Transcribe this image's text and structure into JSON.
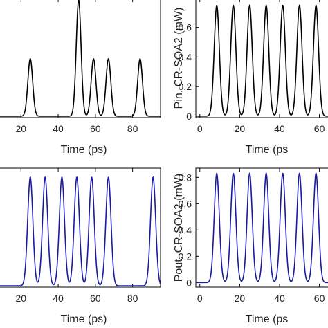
{
  "chart_data": [
    {
      "type": "line",
      "xlabel": "Time (ps)",
      "ylabel": "",
      "x_ticks": [
        20,
        40,
        60,
        80
      ],
      "y_ticks": [],
      "xlim": [
        8,
        95
      ],
      "ylim": [
        -0.01,
        0.84
      ],
      "color": "#000000",
      "pulse_width_ps": 1.3,
      "series": [
        {
          "name": "",
          "peaks_x": [
            25,
            51,
            59,
            67,
            84
          ],
          "peaks_y": [
            0.41,
            0.83,
            0.41,
            0.41,
            0.41
          ]
        }
      ]
    },
    {
      "type": "line",
      "xlabel": "Time (ps",
      "ylabel": "Pin, CR-SOA2 (mW)",
      "x_ticks": [
        0,
        20,
        40,
        60
      ],
      "y_ticks": [
        0.0,
        0.2,
        0.4,
        0.6
      ],
      "xlim": [
        -2,
        65
      ],
      "ylim": [
        -0.01,
        0.795
      ],
      "color": "#000000",
      "pulse_width_ps": 1.3,
      "series": [
        {
          "name": "",
          "peaks_x": [
            8.5,
            16.8,
            25,
            33.3,
            41.6,
            50,
            58.3
          ],
          "peaks_y": [
            0.75,
            0.75,
            0.75,
            0.75,
            0.75,
            0.75,
            0.75
          ]
        }
      ]
    },
    {
      "type": "line",
      "xlabel": "Time (ps)",
      "ylabel": "",
      "x_ticks": [
        20,
        40,
        60,
        80
      ],
      "y_ticks": [],
      "xlim": [
        8,
        95
      ],
      "ylim": [
        -0.01,
        0.9
      ],
      "color": "#1a1aa6",
      "pulse_width_ps": 1.4,
      "series": [
        {
          "name": "",
          "peaks_x": [
            25,
            33,
            42,
            50,
            58,
            67,
            91
          ],
          "peaks_y": [
            0.83,
            0.83,
            0.83,
            0.83,
            0.83,
            0.83,
            0.83
          ]
        }
      ]
    },
    {
      "type": "line",
      "xlabel": "Time (ps",
      "ylabel": "Pout, CR-SOA2 (mW)",
      "x_ticks": [
        0,
        20,
        40,
        60
      ],
      "y_ticks": [
        0.0,
        0.2,
        0.4,
        0.6,
        0.8
      ],
      "xlim": [
        -2,
        65
      ],
      "ylim": [
        -0.035,
        0.87
      ],
      "color": "#1a1aa6",
      "pulse_width_ps": 1.3,
      "series": [
        {
          "name": "",
          "peaks_x": [
            8.5,
            16.8,
            25,
            33.3,
            41.6,
            50,
            58.3
          ],
          "peaks_y": [
            0.83,
            0.83,
            0.83,
            0.83,
            0.83,
            0.83,
            0.83
          ]
        }
      ]
    }
  ]
}
